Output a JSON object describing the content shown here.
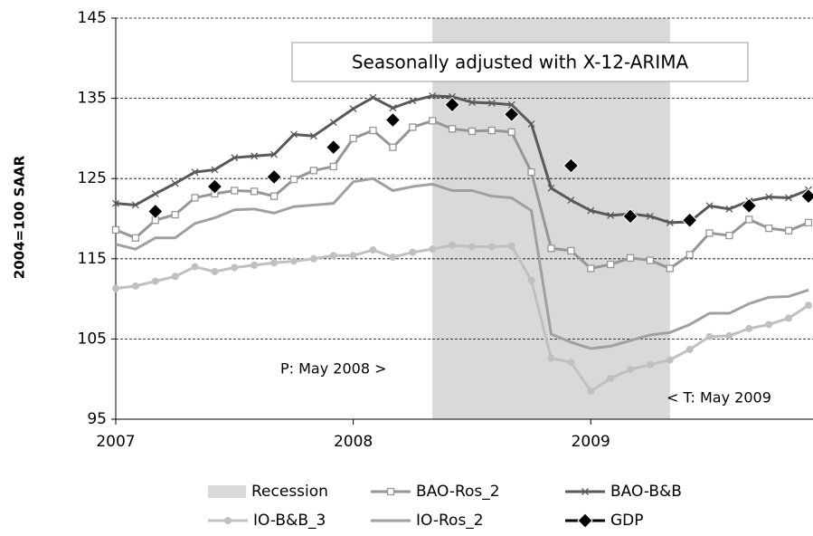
{
  "chart_data": {
    "type": "line",
    "y_label": "2004=100 SAAR",
    "annotation_box": "Seasonally adjusted with X-12-ARIMA",
    "annotation_peak": "P: May 2008 >",
    "annotation_trough": "< T: May 2009",
    "recession": {
      "name": "Recession",
      "range": [
        2008.3333,
        2009.3333
      ],
      "color": "#d9d9d9"
    },
    "xlim": [
      2007,
      2009.9167
    ],
    "xticks": [
      2007,
      2008,
      2009
    ],
    "ylim": [
      95,
      145
    ],
    "yticks": [
      95,
      105,
      115,
      125,
      135,
      145
    ],
    "grid": true,
    "x": [
      2007,
      2007.0833,
      2007.1667,
      2007.25,
      2007.3333,
      2007.4167,
      2007.5,
      2007.5833,
      2007.6667,
      2007.75,
      2007.8333,
      2007.9167,
      2008,
      2008.0833,
      2008.1667,
      2008.25,
      2008.3333,
      2008.4167,
      2008.5,
      2008.5833,
      2008.6667,
      2008.75,
      2008.8333,
      2008.9167,
      2009,
      2009.0833,
      2009.1667,
      2009.25,
      2009.3333,
      2009.4167,
      2009.5,
      2009.5833,
      2009.6667,
      2009.75,
      2009.8333,
      2009.9167
    ],
    "series": [
      {
        "name": "BAO-Ros_2",
        "color": "#969696",
        "marker": "square",
        "line": true,
        "values": [
          118.6,
          117.6,
          119.8,
          120.5,
          122.6,
          123.1,
          123.5,
          123.4,
          122.8,
          124.9,
          126.0,
          126.5,
          130.0,
          131.0,
          128.9,
          131.4,
          132.2,
          131.2,
          130.9,
          131.0,
          130.8,
          125.8,
          116.3,
          116.0,
          113.8,
          114.3,
          115.1,
          114.8,
          113.8,
          115.5,
          118.2,
          117.9,
          119.9,
          118.8,
          118.5,
          119.5
        ]
      },
      {
        "name": "BAO-B&B",
        "color": "#595959",
        "marker": "x",
        "line": true,
        "values": [
          121.9,
          121.7,
          123.1,
          124.4,
          125.8,
          126.1,
          127.6,
          127.8,
          128.0,
          130.5,
          130.3,
          132.0,
          133.7,
          135.1,
          133.8,
          134.7,
          135.3,
          135.2,
          134.5,
          134.4,
          134.2,
          131.8,
          123.8,
          122.3,
          121.0,
          120.4,
          120.6,
          120.3,
          119.5,
          119.6,
          121.6,
          121.2,
          122.2,
          122.7,
          122.6,
          123.6
        ]
      },
      {
        "name": "IO-B&B_3",
        "color": "#c0c0c0",
        "marker": "circle",
        "line": true,
        "values": [
          111.3,
          111.6,
          112.2,
          112.8,
          114.0,
          113.4,
          113.9,
          114.2,
          114.5,
          114.7,
          115.0,
          115.4,
          115.4,
          116.1,
          115.2,
          115.8,
          116.2,
          116.7,
          116.5,
          116.5,
          116.6,
          112.3,
          102.6,
          102.1,
          98.5,
          100.1,
          101.2,
          101.8,
          102.4,
          103.7,
          105.3,
          105.4,
          106.3,
          106.8,
          107.6,
          109.2
        ]
      },
      {
        "name": "IO-Ros_2",
        "color": "#a0a0a0",
        "marker": "none",
        "line": true,
        "values": [
          116.8,
          116.2,
          117.6,
          117.6,
          119.4,
          120.1,
          121.1,
          121.2,
          120.7,
          121.5,
          121.7,
          121.9,
          124.6,
          125.0,
          123.5,
          124.0,
          124.3,
          123.5,
          123.5,
          122.8,
          122.6,
          121.0,
          105.6,
          104.6,
          103.8,
          104.1,
          104.8,
          105.5,
          105.8,
          106.8,
          108.2,
          108.2,
          109.4,
          110.2,
          110.3,
          111.1
        ]
      },
      {
        "name": "GDP",
        "color": "#000000",
        "marker": "diamond",
        "line": false,
        "x": [
          2007.1667,
          2007.4167,
          2007.6667,
          2007.9167,
          2008.1667,
          2008.4167,
          2008.6667,
          2008.9167,
          2009.1667,
          2009.4167,
          2009.6667,
          2009.9167
        ],
        "values": [
          120.9,
          124.0,
          125.2,
          128.9,
          132.3,
          134.2,
          133.0,
          126.6,
          120.3,
          119.8,
          121.6,
          122.8
        ]
      }
    ]
  }
}
